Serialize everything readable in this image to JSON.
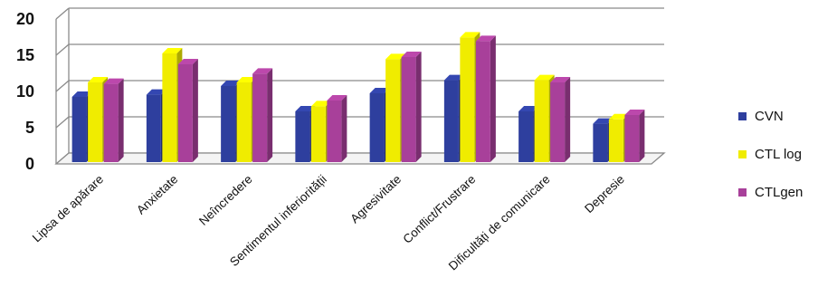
{
  "chart_data": {
    "type": "bar",
    "title": "",
    "xlabel": "",
    "ylabel": "",
    "ylim": [
      0,
      20
    ],
    "yticks": [
      0,
      5,
      10,
      15,
      20
    ],
    "grid": true,
    "legend_position": "right",
    "categories": [
      "Lipsa de apărare",
      "Anxietate",
      "Neîncredere",
      "Sentimentul inferiorității",
      "Agresivitate",
      "Conflict/Frustrare",
      "Dificultăți de comunicare",
      "Depresie"
    ],
    "series": [
      {
        "name": "CVN",
        "color": "#2e3f9e",
        "values": [
          9.0,
          9.3,
          10.5,
          7.0,
          9.5,
          11.3,
          7.0,
          5.3
        ]
      },
      {
        "name": "CTL log",
        "color": "#f0ec00",
        "values": [
          11.0,
          15.0,
          11.0,
          7.7,
          14.2,
          17.2,
          11.3,
          5.9
        ]
      },
      {
        "name": "CTLgen",
        "color": "#a8409a",
        "values": [
          10.8,
          13.5,
          12.2,
          8.5,
          14.5,
          16.7,
          11.0,
          6.5
        ]
      }
    ]
  }
}
